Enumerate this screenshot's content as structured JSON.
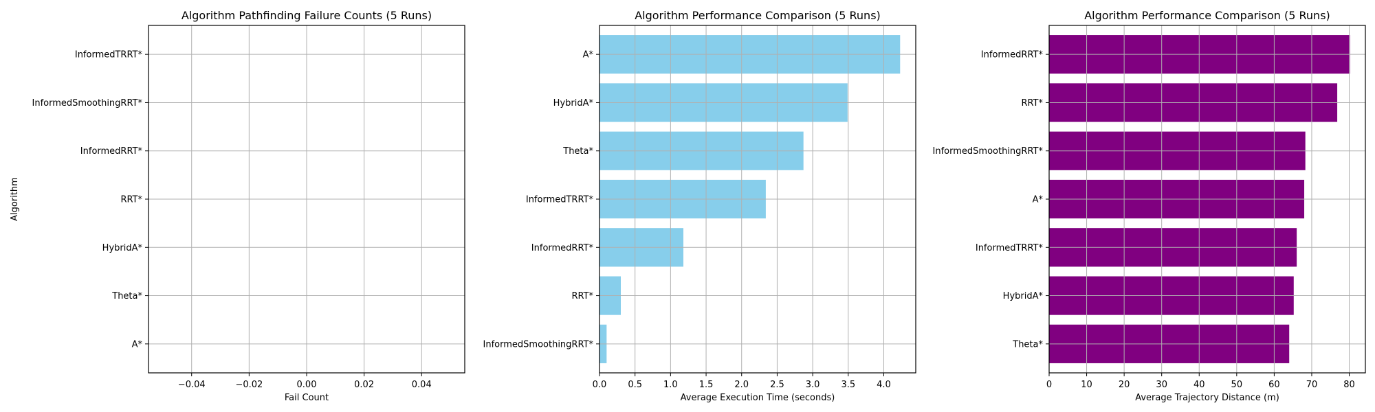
{
  "chart_data": [
    {
      "type": "bar",
      "orientation": "horizontal",
      "title": "Algorithm Pathfinding Failure Counts (5 Runs)",
      "xlabel": "Fail Count",
      "ylabel": "Algorithm",
      "categories": [
        "InformedTRRT*",
        "InformedSmoothingRRT*",
        "InformedRRT*",
        "RRT*",
        "HybridA*",
        "Theta*",
        "A*"
      ],
      "values": [
        0,
        0,
        0,
        0,
        0,
        0,
        0
      ],
      "xlim": [
        -0.055,
        0.055
      ],
      "xticks": [
        -0.04,
        -0.02,
        0.0,
        0.02,
        0.04
      ],
      "xtick_labels": [
        "−0.04",
        "−0.02",
        "0.00",
        "0.02",
        "0.04"
      ],
      "color": "#1f77b4",
      "grid": true
    },
    {
      "type": "bar",
      "orientation": "horizontal",
      "title": "Algorithm Performance Comparison (5 Runs)",
      "xlabel": "Average Execution Time (seconds)",
      "ylabel": "",
      "categories": [
        "A*",
        "HybridA*",
        "Theta*",
        "InformedTRRT*",
        "InformedRRT*",
        "RRT*",
        "InformedSmoothingRRT*"
      ],
      "values": [
        4.23,
        3.49,
        2.87,
        2.34,
        1.18,
        0.3,
        0.1
      ],
      "xlim": [
        0,
        4.45
      ],
      "xticks": [
        0.0,
        0.5,
        1.0,
        1.5,
        2.0,
        2.5,
        3.0,
        3.5,
        4.0
      ],
      "xtick_labels": [
        "0.0",
        "0.5",
        "1.0",
        "1.5",
        "2.0",
        "2.5",
        "3.0",
        "3.5",
        "4.0"
      ],
      "color": "#87ceeb",
      "grid": true
    },
    {
      "type": "bar",
      "orientation": "horizontal",
      "title": "Algorithm Performance Comparison (5 Runs)",
      "xlabel": "Average Trajectory Distance (m)",
      "ylabel": "",
      "categories": [
        "InformedRRT*",
        "RRT*",
        "InformedSmoothingRRT*",
        "A*",
        "InformedTRRT*",
        "HybridA*",
        "Theta*"
      ],
      "values": [
        80.2,
        76.8,
        68.3,
        68.0,
        66.0,
        65.2,
        64.0
      ],
      "xlim": [
        0,
        84.3
      ],
      "xticks": [
        0,
        10,
        20,
        30,
        40,
        50,
        60,
        70,
        80
      ],
      "xtick_labels": [
        "0",
        "10",
        "20",
        "30",
        "40",
        "50",
        "60",
        "70",
        "80"
      ],
      "color": "#800080",
      "grid": true
    }
  ]
}
